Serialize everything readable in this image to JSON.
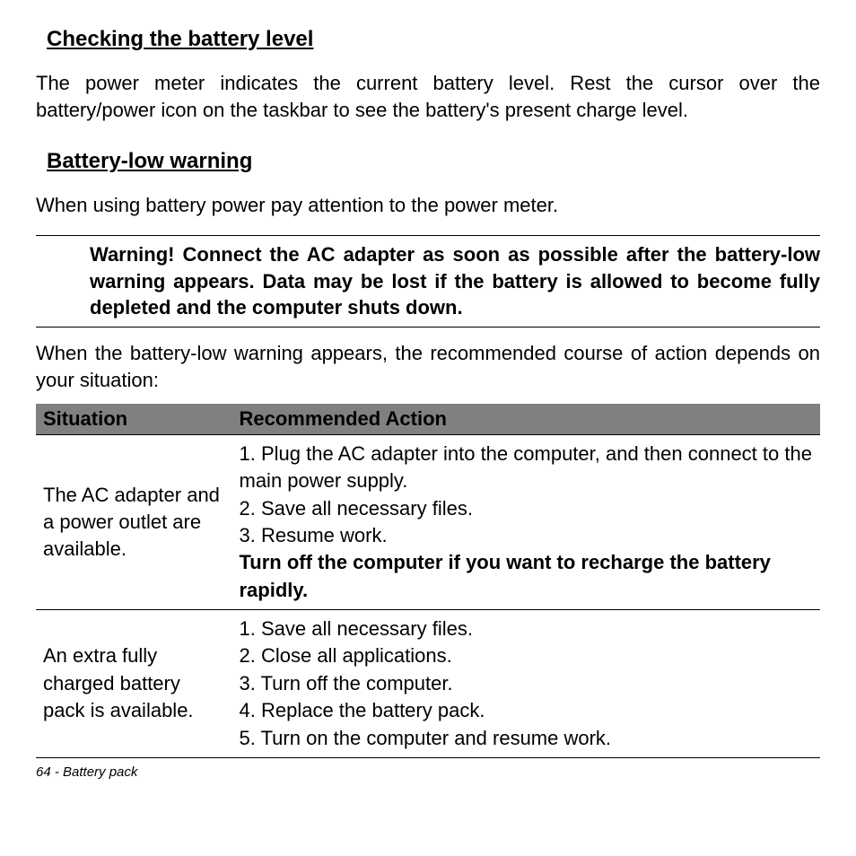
{
  "section1": {
    "heading": "Checking the battery level",
    "body": "The power meter indicates the current battery level. Rest the cursor over the battery/power icon on the taskbar to see the battery's present charge level."
  },
  "section2": {
    "heading": "Battery-low warning",
    "body": "When using battery power pay attention to the power meter."
  },
  "warning": "Warning! Connect the AC adapter as soon as possible after the battery-low warning appears. Data may be lost if the battery is allowed to become fully depleted and the computer shuts down.",
  "intro": "When the battery-low warning appears, the recommended course of action depends on your situation:",
  "table": {
    "headers": {
      "situation": "Situation",
      "action": "Recommended Action"
    },
    "rows": [
      {
        "situation": "The AC adapter and a power outlet are available.",
        "actions": {
          "l1": "1. Plug the AC adapter into the computer, and then connect to the main power supply.",
          "l2": "2. Save all necessary files.",
          "l3": "3. Resume work.",
          "l4": "Turn off the computer if you want to recharge the battery rapidly."
        }
      },
      {
        "situation": "An extra fully charged battery pack is available.",
        "actions": {
          "l1": "1. Save all necessary files.",
          "l2": "2. Close all applications.",
          "l3": "3. Turn off the computer.",
          "l4": "4. Replace the battery pack.",
          "l5": "5. Turn on the computer and resume work."
        }
      }
    ]
  },
  "footer": "64 - Battery pack",
  "style": {
    "page_bg": "#ffffff",
    "text_color": "#000000",
    "header_bg": "#808080",
    "border_color": "#000000",
    "body_fontsize": 22,
    "heading_fontsize": 24,
    "footer_fontsize": 15,
    "col_widths": [
      "25%",
      "75%"
    ]
  }
}
